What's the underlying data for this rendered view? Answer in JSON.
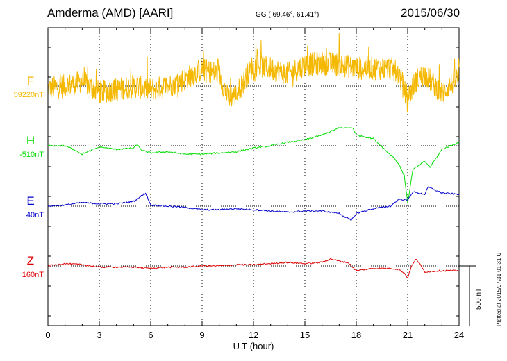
{
  "header": {
    "station": "Amderma (AMD)  [AARI]",
    "coords": "GG ( 69.46°,  61.41°)",
    "date": "2015/06/30"
  },
  "plotted_note": "Plotted at 2015/07/31 01:31  UT",
  "scale_bar_label": "500 nT",
  "colors": {
    "F": "#f5b800",
    "H": "#00dd00",
    "E": "#0000cc",
    "Z": "#dd0000"
  },
  "chart_data": {
    "type": "line",
    "xlabel": "U T (hour)",
    "xlim": [
      0,
      24
    ],
    "x_ticks": [
      "0",
      "3",
      "6",
      "9",
      "12",
      "15",
      "18",
      "21",
      "24"
    ],
    "grid": "dotted vertical at 3-hour intervals; dotted baseline per series",
    "series": [
      {
        "name": "F",
        "baseline_label": "59220nT",
        "color": "#f5b800",
        "x": [
          0,
          1,
          2,
          3,
          4,
          5,
          6,
          7,
          8,
          9,
          10,
          10.5,
          11,
          12,
          13,
          14,
          15,
          16,
          17,
          18,
          19,
          20,
          20.5,
          21,
          21.5,
          22,
          23,
          24
        ],
        "y": [
          -20,
          0,
          40,
          -50,
          -30,
          0,
          -30,
          0,
          60,
          140,
          100,
          -100,
          -70,
          180,
          150,
          100,
          180,
          190,
          180,
          150,
          150,
          150,
          100,
          -100,
          50,
          100,
          -60,
          80
        ],
        "noise": "high-frequency fluctuations ~±120 nT"
      },
      {
        "name": "H",
        "baseline_label": "-510nT",
        "color": "#00dd00",
        "x": [
          0,
          1,
          1.5,
          2,
          3,
          4,
          5,
          5.2,
          5.5,
          6,
          7,
          8,
          9,
          10,
          11,
          12,
          13,
          14,
          15,
          16,
          17,
          17.8,
          18,
          19,
          19.8,
          20.2,
          20.5,
          20.8,
          21,
          21.3,
          22,
          22.3,
          23,
          24
        ],
        "y": [
          0,
          0,
          -30,
          -70,
          -10,
          -30,
          -20,
          10,
          -40,
          -60,
          -50,
          -70,
          -70,
          -60,
          -50,
          -20,
          0,
          30,
          50,
          90,
          150,
          150,
          90,
          60,
          -50,
          -100,
          -160,
          -250,
          -480,
          -200,
          -130,
          -180,
          -30,
          30
        ]
      },
      {
        "name": "E",
        "baseline_label": "40nT",
        "color": "#0000cc",
        "x": [
          0,
          1,
          2,
          3,
          4,
          5,
          5.7,
          6,
          7,
          8,
          9,
          10,
          11,
          12,
          13,
          14,
          15,
          16,
          17,
          17.7,
          18,
          19,
          20,
          20.5,
          21,
          21.3,
          22,
          22.2,
          23,
          24
        ],
        "y": [
          0,
          10,
          30,
          20,
          20,
          40,
          110,
          10,
          0,
          -10,
          -30,
          -30,
          -20,
          -30,
          -40,
          -50,
          -40,
          -40,
          -60,
          -120,
          -60,
          -20,
          0,
          60,
          50,
          120,
          100,
          160,
          110,
          100
        ]
      },
      {
        "name": "Z",
        "baseline_label": "160nT",
        "color": "#dd0000",
        "x": [
          0,
          1,
          2,
          3,
          4,
          5,
          6,
          7,
          8,
          9,
          10,
          11,
          12,
          13,
          14,
          15,
          16,
          16.5,
          17,
          17.5,
          18,
          19,
          20,
          20.5,
          20.8,
          21,
          21.2,
          21.5,
          22,
          23,
          24
        ],
        "y": [
          0,
          20,
          10,
          -10,
          -10,
          -10,
          -20,
          -10,
          -10,
          0,
          0,
          10,
          10,
          20,
          30,
          20,
          30,
          60,
          40,
          30,
          -40,
          -20,
          -20,
          -30,
          -60,
          -100,
          -10,
          60,
          -50,
          -40,
          -40
        ]
      }
    ],
    "scale_bar_nT": 500
  }
}
